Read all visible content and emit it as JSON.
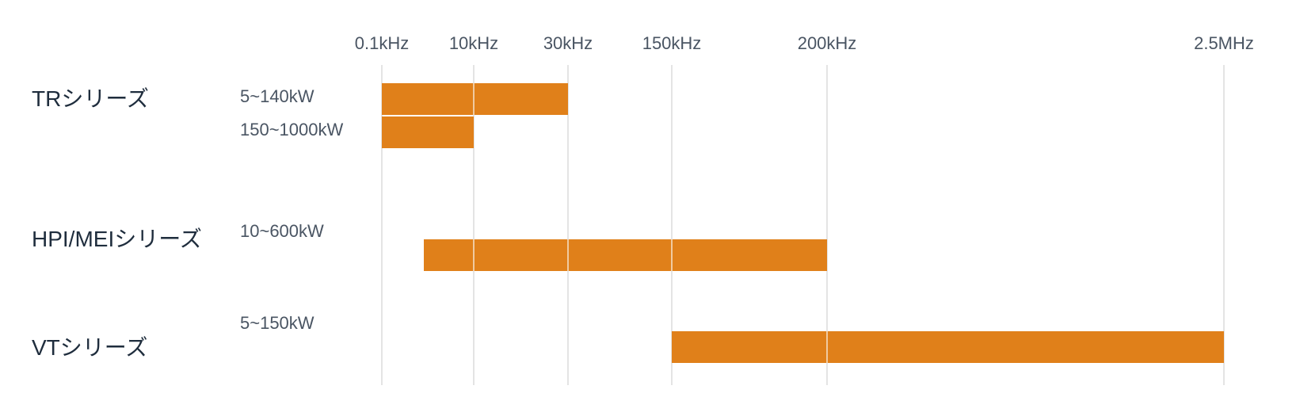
{
  "chart_data": {
    "type": "bar",
    "orientation": "horizontal-range",
    "title": "",
    "xlabel": "",
    "ylabel": "",
    "bar_color": "#e0801a",
    "grid_color": "#dcdcdc",
    "ticks": [
      "0.1kHz",
      "10kHz",
      "30kHz",
      "150kHz",
      "200kHz",
      "2.5MHz"
    ],
    "groups": [
      {
        "label": "TRシリーズ",
        "bars": [
          {
            "power": "5~140kW",
            "start": "0.1kHz",
            "end": "30kHz"
          },
          {
            "power": "150~1000kW",
            "start": "0.1kHz",
            "end": "10kHz"
          }
        ]
      },
      {
        "label": "HPI/MEIシリーズ",
        "bars": [
          {
            "power": "10~600kW",
            "start": "5kHz",
            "end": "200kHz"
          }
        ]
      },
      {
        "label": "VTシリーズ",
        "bars": [
          {
            "power": "5~150kW",
            "start": "150kHz",
            "end": "2.5MHz"
          }
        ]
      }
    ]
  }
}
